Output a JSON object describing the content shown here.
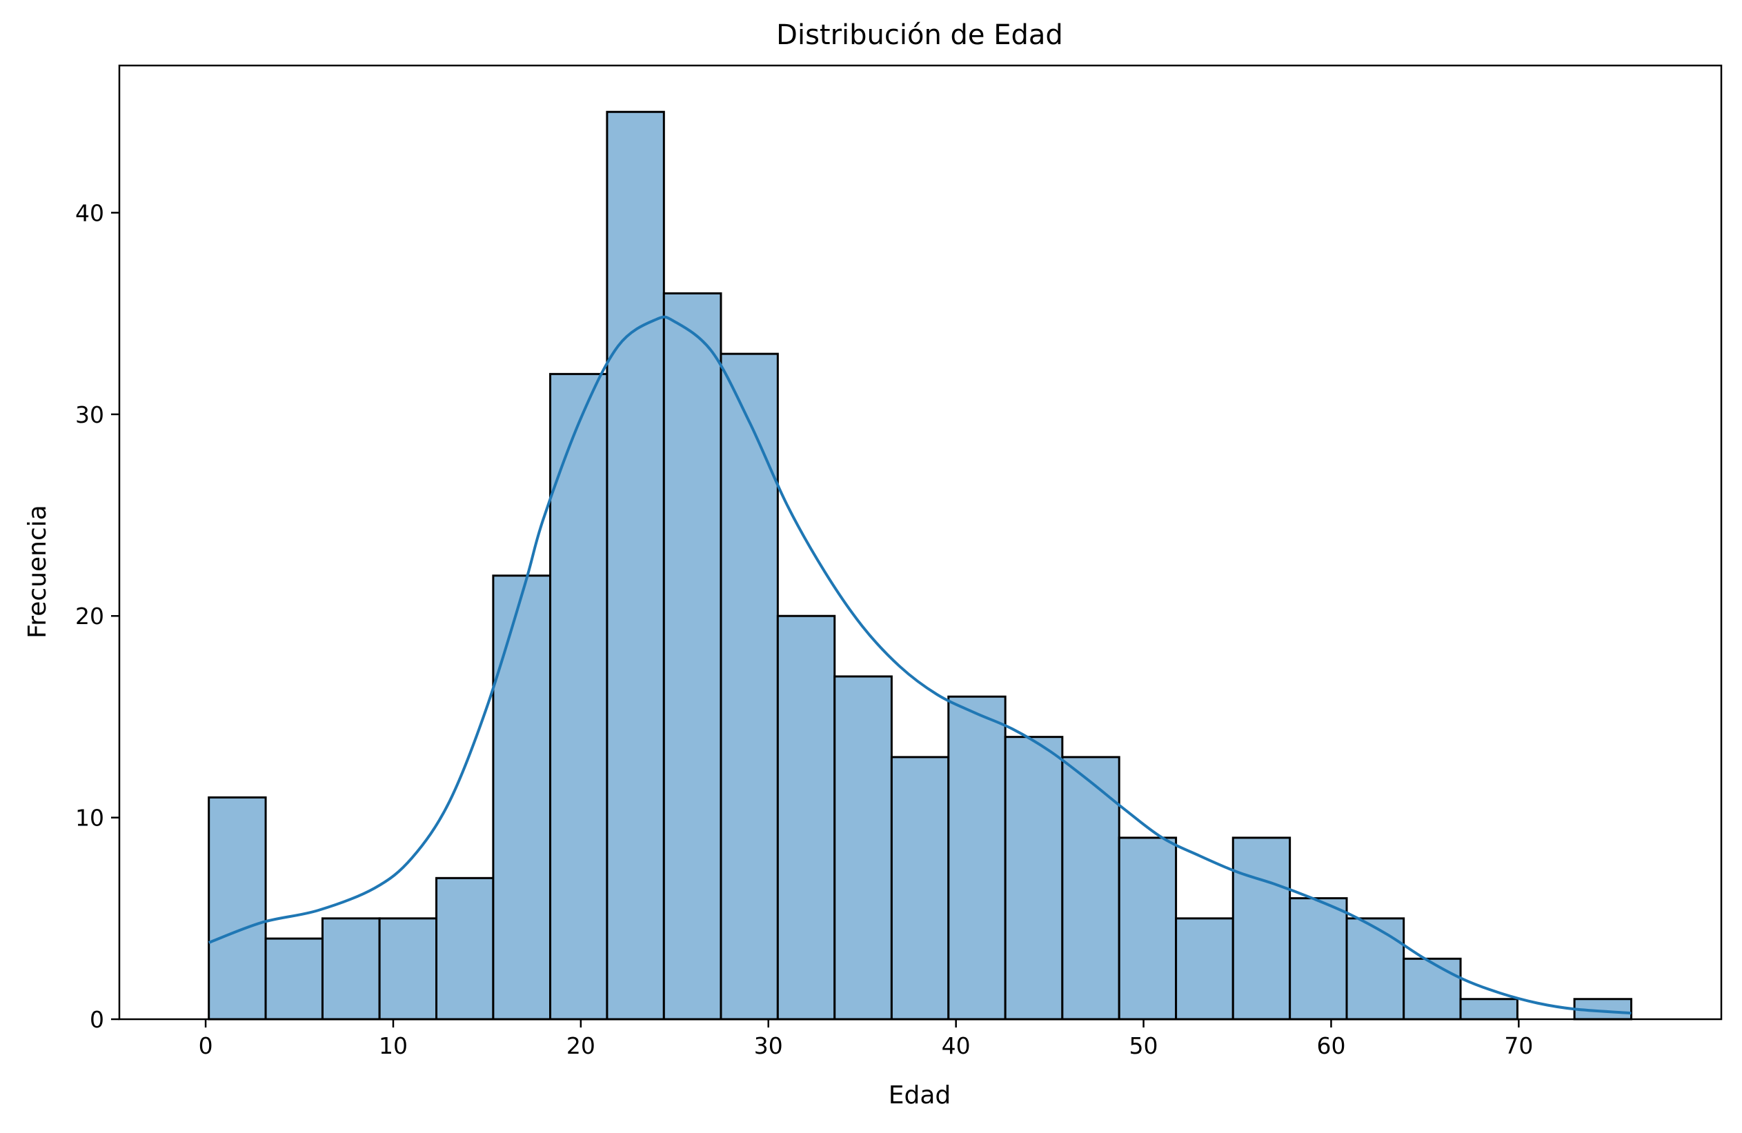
{
  "chart_data": {
    "type": "bar",
    "subtype": "histogram_with_kde",
    "title": "Distribución de Edad",
    "xlabel": "Edad",
    "ylabel": "Frecuencia",
    "xlim": [
      -4.6,
      80.8
    ],
    "ylim": [
      0,
      47.3
    ],
    "xticks": [
      0,
      10,
      20,
      30,
      40,
      50,
      60,
      70
    ],
    "yticks": [
      0,
      10,
      20,
      30,
      40
    ],
    "bin_edges": [
      0.17,
      3.2,
      6.23,
      9.27,
      12.3,
      15.33,
      18.37,
      21.4,
      24.43,
      27.47,
      30.5,
      33.53,
      36.57,
      39.6,
      42.63,
      45.67,
      48.7,
      51.73,
      54.77,
      57.8,
      60.83,
      63.87,
      66.9,
      69.93,
      72.97,
      76.0
    ],
    "values": [
      11,
      4,
      5,
      5,
      7,
      22,
      32,
      45,
      36,
      33,
      20,
      17,
      13,
      16,
      14,
      13,
      9,
      5,
      9,
      6,
      5,
      3,
      1,
      0,
      1
    ],
    "kde": {
      "x": [
        0.17,
        3,
        6,
        9,
        11,
        13,
        15,
        17,
        18,
        20,
        22,
        24,
        25,
        27,
        29,
        31,
        33,
        35,
        37,
        39,
        41,
        43,
        45,
        47,
        49,
        51,
        53,
        55,
        57,
        59,
        61,
        63,
        65,
        67,
        69,
        71,
        73,
        76
      ],
      "y": [
        3.8,
        4.8,
        5.4,
        6.5,
        8.0,
        10.8,
        15.5,
        21.5,
        24.8,
        29.8,
        33.4,
        34.7,
        34.6,
        33.1,
        29.6,
        25.5,
        22.2,
        19.5,
        17.5,
        16.1,
        15.2,
        14.4,
        13.3,
        11.9,
        10.4,
        9.0,
        8.1,
        7.3,
        6.7,
        6.0,
        5.2,
        4.2,
        3.0,
        2.0,
        1.3,
        0.8,
        0.5,
        0.3
      ]
    },
    "grid": false,
    "legend": "none",
    "colors": {
      "bar_fill": "#8ebadb",
      "bar_edge": "#000000",
      "kde_line": "#1f77b4"
    }
  }
}
